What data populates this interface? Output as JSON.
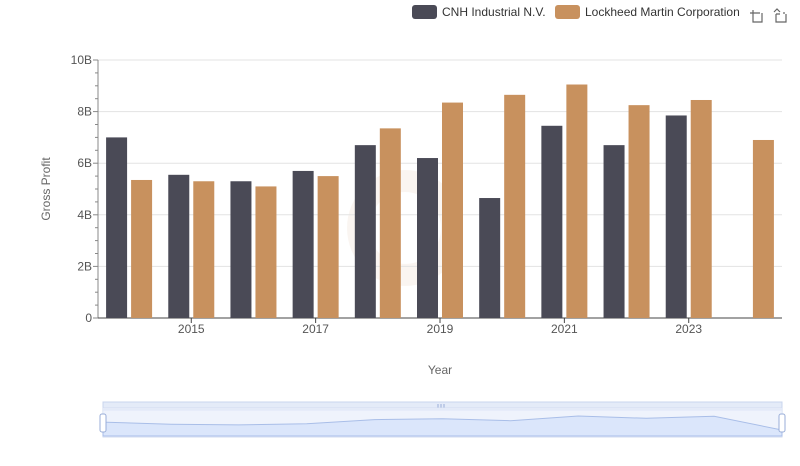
{
  "chart_data": {
    "type": "bar",
    "title": "",
    "xlabel": "Year",
    "ylabel": "Gross Profit",
    "ylim": [
      0,
      10
    ],
    "y_ticks": [
      {
        "value": 0,
        "label": "0"
      },
      {
        "value": 2,
        "label": "2B"
      },
      {
        "value": 4,
        "label": "4B"
      },
      {
        "value": 6,
        "label": "6B"
      },
      {
        "value": 8,
        "label": "8B"
      },
      {
        "value": 10,
        "label": "10B"
      }
    ],
    "x_tick_labels": [
      "2015",
      "2017",
      "2019",
      "2021",
      "2023"
    ],
    "categories": [
      "2014",
      "2015",
      "2016",
      "2017",
      "2018",
      "2019",
      "2020",
      "2021",
      "2022",
      "2023",
      "2024"
    ],
    "series": [
      {
        "name": "CNH Industrial N.V.",
        "color": "#4a4a56",
        "values": [
          7.0,
          5.55,
          5.3,
          5.7,
          6.7,
          6.2,
          4.65,
          7.45,
          6.7,
          7.85,
          null
        ]
      },
      {
        "name": "Lockheed Martin Corporation",
        "color": "#c8915e",
        "values": [
          5.35,
          5.3,
          5.1,
          5.5,
          7.35,
          8.35,
          8.65,
          9.05,
          8.25,
          8.45,
          6.9
        ]
      }
    ],
    "grid": true,
    "legend_position": "top-right"
  },
  "toolbox": {
    "zoom_icon": "zoom-icon",
    "restore_icon": "restore-icon"
  },
  "datazoom": {
    "fill_color": "#dbe6fb",
    "line_color": "#a9bee8"
  }
}
